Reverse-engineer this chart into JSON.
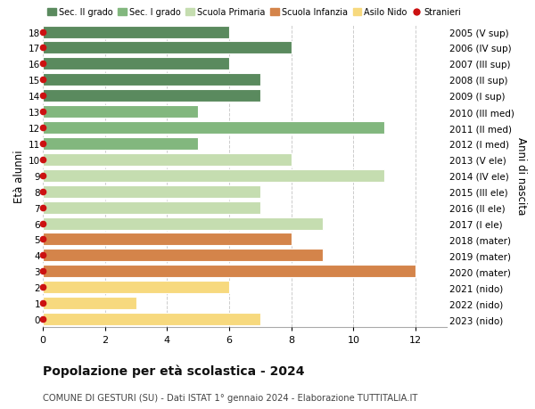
{
  "ages": [
    18,
    17,
    16,
    15,
    14,
    13,
    12,
    11,
    10,
    9,
    8,
    7,
    6,
    5,
    4,
    3,
    2,
    1,
    0
  ],
  "years_labels": [
    "2005 (V sup)",
    "2006 (IV sup)",
    "2007 (III sup)",
    "2008 (II sup)",
    "2009 (I sup)",
    "2010 (III med)",
    "2011 (II med)",
    "2012 (I med)",
    "2013 (V ele)",
    "2014 (IV ele)",
    "2015 (III ele)",
    "2016 (II ele)",
    "2017 (I ele)",
    "2018 (mater)",
    "2019 (mater)",
    "2020 (mater)",
    "2021 (nido)",
    "2022 (nido)",
    "2023 (nido)"
  ],
  "values": [
    6,
    8,
    6,
    7,
    7,
    5,
    11,
    5,
    8,
    11,
    7,
    7,
    9,
    8,
    9,
    12,
    6,
    3,
    7
  ],
  "bar_colors": [
    "#5a8a5e",
    "#5a8a5e",
    "#5a8a5e",
    "#5a8a5e",
    "#5a8a5e",
    "#82b77e",
    "#82b77e",
    "#82b77e",
    "#c5ddb0",
    "#c5ddb0",
    "#c5ddb0",
    "#c5ddb0",
    "#c5ddb0",
    "#d4844a",
    "#d4844a",
    "#d4844a",
    "#f7d97e",
    "#f7d97e",
    "#f7d97e"
  ],
  "stranieri_color": "#cc1111",
  "background_color": "#ffffff",
  "grid_color": "#cccccc",
  "xlim": [
    0,
    13
  ],
  "xticks": [
    0,
    2,
    4,
    6,
    8,
    10,
    12
  ],
  "xlabel": "Età alunni",
  "ylabel_right": "Anni di nascita",
  "title": "Popolazione per età scolastica - 2024",
  "subtitle": "COMUNE DI GESTURI (SU) - Dati ISTAT 1° gennaio 2024 - Elaborazione TUTTITALIA.IT",
  "legend_items": [
    {
      "label": "Sec. II grado",
      "color": "#5a8a5e",
      "type": "patch"
    },
    {
      "label": "Sec. I grado",
      "color": "#82b77e",
      "type": "patch"
    },
    {
      "label": "Scuola Primaria",
      "color": "#c5ddb0",
      "type": "patch"
    },
    {
      "label": "Scuola Infanzia",
      "color": "#d4844a",
      "type": "patch"
    },
    {
      "label": "Asilo Nido",
      "color": "#f7d97e",
      "type": "patch"
    },
    {
      "label": "Stranieri",
      "color": "#cc1111",
      "type": "dot"
    }
  ],
  "bar_height": 0.78
}
